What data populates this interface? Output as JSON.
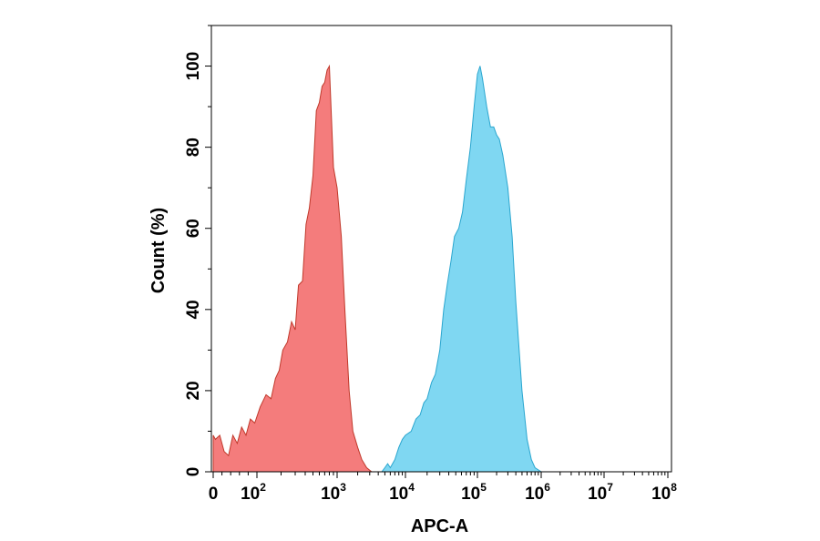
{
  "chart_data": {
    "type": "area",
    "title": "",
    "xlabel": "APC-A",
    "ylabel": "Count (%)",
    "x_scale": "biexponential",
    "x_ticks": [
      {
        "value": 0,
        "base": "0",
        "exp": ""
      },
      {
        "value": 100,
        "base": "10",
        "exp": "2"
      },
      {
        "value": 1000,
        "base": "10",
        "exp": "3"
      },
      {
        "value": 10000,
        "base": "10",
        "exp": "4"
      },
      {
        "value": 100000,
        "base": "10",
        "exp": "5"
      },
      {
        "value": 1000000,
        "base": "10",
        "exp": "6"
      },
      {
        "value": 10000000,
        "base": "10",
        "exp": "7"
      },
      {
        "value": 100000000,
        "base": "10",
        "exp": "8"
      }
    ],
    "y_ticks": [
      0,
      20,
      40,
      60,
      80,
      100
    ],
    "ylim": [
      0,
      110
    ],
    "grid": false,
    "legend": "none",
    "series": [
      {
        "color": "#f47c7c",
        "edge": "#c0392b",
        "x": [
          0,
          5,
          15,
          25,
          35,
          45,
          55,
          65,
          75,
          85,
          95,
          110,
          130,
          150,
          170,
          190,
          210,
          240,
          270,
          300,
          330,
          370,
          410,
          450,
          500,
          550,
          600,
          650,
          700,
          750,
          800,
          900,
          1000,
          1150,
          1300,
          1500,
          1700,
          2000,
          2300,
          2700,
          3200
        ],
        "y": [
          9,
          8,
          9,
          5,
          4,
          9,
          7,
          11,
          9,
          13,
          12,
          16,
          19,
          18,
          23,
          25,
          30,
          32,
          37,
          35,
          46,
          47,
          61,
          65,
          73,
          89,
          91,
          95,
          96,
          99,
          100,
          75,
          70,
          58,
          40,
          20,
          10,
          6,
          3,
          1,
          0
        ]
      },
      {
        "color": "#7fd7f2",
        "edge": "#2aa6cf",
        "x": [
          4000,
          4500,
          5000,
          5500,
          6000,
          7000,
          8000,
          9000,
          10000,
          12000,
          14000,
          16000,
          18000,
          20000,
          23000,
          26000,
          30000,
          34000,
          38000,
          43000,
          48000,
          55000,
          62000,
          70000,
          80000,
          90000,
          100000,
          110000,
          120000,
          140000,
          160000,
          180000,
          200000,
          220000,
          250000,
          300000,
          350000,
          400000,
          500000,
          600000,
          700000,
          800000,
          1000000
        ],
        "y": [
          0,
          0,
          1,
          2,
          1,
          3,
          6,
          8,
          9,
          10,
          13,
          14,
          17,
          18,
          22,
          24,
          30,
          40,
          46,
          52,
          58,
          60,
          64,
          72,
          80,
          90,
          98,
          100,
          97,
          90,
          85,
          85,
          83,
          82,
          78,
          70,
          58,
          42,
          20,
          8,
          3,
          1,
          0
        ]
      }
    ]
  }
}
